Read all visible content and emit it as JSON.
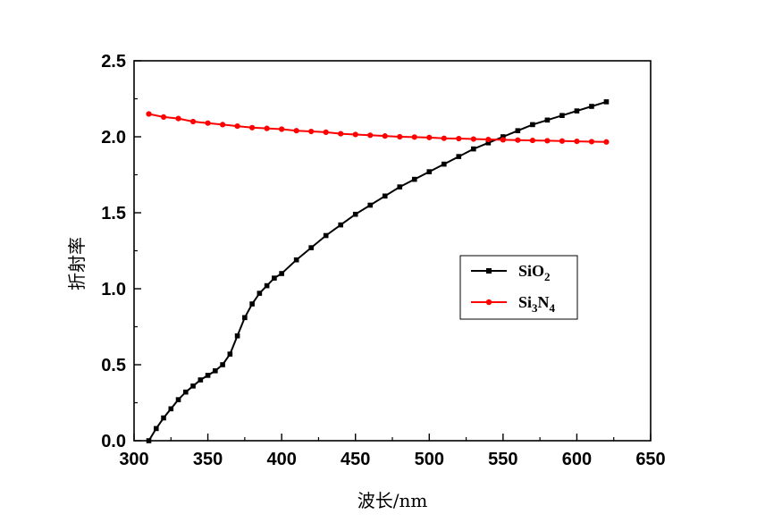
{
  "chart_data": {
    "type": "line",
    "xlabel": "波长/nm",
    "ylabel": "折射率",
    "xlim": [
      300,
      650
    ],
    "ylim": [
      0.0,
      2.5
    ],
    "x_ticks": [
      "300",
      "350",
      "400",
      "450",
      "500",
      "550",
      "600",
      "650"
    ],
    "y_ticks": [
      "0.0",
      "0.5",
      "1.0",
      "1.5",
      "2.0",
      "2.5"
    ],
    "grid": false,
    "legend_placement": "center-right",
    "series": [
      {
        "name": "SiO2",
        "legend_base": "SiO",
        "legend_sub": "2",
        "color": "#000000",
        "marker": "square",
        "x": [
          310,
          315,
          320,
          325,
          330,
          335,
          340,
          345,
          350,
          355,
          360,
          365,
          370,
          375,
          380,
          385,
          390,
          395,
          400,
          410,
          420,
          430,
          440,
          450,
          460,
          470,
          480,
          490,
          500,
          510,
          520,
          530,
          540,
          550,
          560,
          570,
          580,
          590,
          600,
          610,
          620
        ],
        "y": [
          0.0,
          0.08,
          0.15,
          0.21,
          0.27,
          0.32,
          0.36,
          0.4,
          0.43,
          0.46,
          0.5,
          0.57,
          0.69,
          0.81,
          0.9,
          0.97,
          1.02,
          1.07,
          1.1,
          1.19,
          1.27,
          1.35,
          1.42,
          1.49,
          1.55,
          1.61,
          1.67,
          1.72,
          1.77,
          1.82,
          1.87,
          1.92,
          1.96,
          2.0,
          2.04,
          2.08,
          2.11,
          2.14,
          2.17,
          2.2,
          2.23
        ]
      },
      {
        "name": "Si3N4",
        "legend_base": "Si",
        "legend_sub1": "3",
        "legend_mid": "N",
        "legend_sub2": "4",
        "color": "#ff0000",
        "marker": "circle",
        "x": [
          310,
          320,
          330,
          340,
          350,
          360,
          370,
          380,
          390,
          400,
          410,
          420,
          430,
          440,
          450,
          460,
          470,
          480,
          490,
          500,
          510,
          520,
          530,
          540,
          550,
          560,
          570,
          580,
          590,
          600,
          610,
          620
        ],
        "y": [
          2.15,
          2.13,
          2.12,
          2.1,
          2.09,
          2.08,
          2.07,
          2.06,
          2.055,
          2.05,
          2.04,
          2.035,
          2.03,
          2.02,
          2.015,
          2.01,
          2.005,
          2.0,
          1.998,
          1.995,
          1.99,
          1.988,
          1.985,
          1.982,
          1.98,
          1.978,
          1.976,
          1.974,
          1.972,
          1.97,
          1.968,
          1.966
        ]
      }
    ]
  }
}
